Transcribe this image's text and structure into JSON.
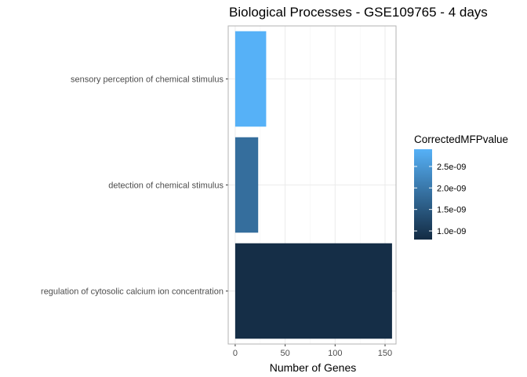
{
  "chart_data": {
    "type": "bar",
    "orientation": "horizontal",
    "title": "Biological Processes - GSE109765 - 4 days",
    "xlabel": "Number of Genes",
    "ylabel": "",
    "xlim": [
      -7,
      161
    ],
    "x_ticks": [
      0,
      50,
      100,
      150
    ],
    "grid": true,
    "categories": [
      "sensory perception of chemical stimulus",
      "detection of chemical stimulus",
      "regulation of cytosolic calcium ion concentration"
    ],
    "values": [
      31,
      23,
      157
    ],
    "color_values": [
      2.9e-09,
      1.85e-09,
      8.5e-10
    ],
    "legend": {
      "title": "CorrectedMFPvalue",
      "placement": "right",
      "range": [
        8e-10,
        2.9e-09
      ],
      "ticks": [
        {
          "value": 1e-09,
          "label": "1.0e-09"
        },
        {
          "value": 1.5e-09,
          "label": "1.5e-09"
        },
        {
          "value": 2e-09,
          "label": "2.0e-09"
        },
        {
          "value": 2.5e-09,
          "label": "2.5e-09"
        }
      ],
      "colors": {
        "low": "#132B43",
        "high": "#56B1F7"
      }
    }
  }
}
